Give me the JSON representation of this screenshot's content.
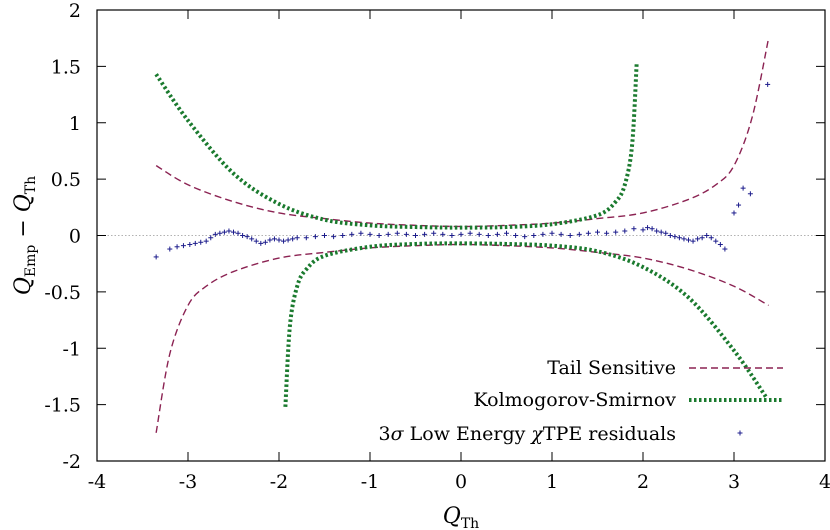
{
  "chart_data": {
    "type": "line",
    "xlim": [
      -4,
      4
    ],
    "ylim": [
      -2,
      2
    ],
    "xticks": [
      -4,
      -3,
      -2,
      -1,
      0,
      1,
      2,
      3,
      4
    ],
    "yticks": [
      -2,
      -1.5,
      -1,
      -0.5,
      0,
      0.5,
      1,
      1.5,
      2
    ],
    "xtick_labels": [
      "-4",
      "-3",
      "-2",
      "-1",
      "0",
      "1",
      "2",
      "3",
      "4"
    ],
    "ytick_labels": [
      "-2",
      "-1.5",
      "-1",
      "-0.5",
      "0",
      "0.5",
      "1",
      "1.5",
      "2"
    ],
    "xlabel": "Q_Th",
    "xlabel_main": "Q",
    "xlabel_sub": "Th",
    "ylabel": "Q_Emp − Q_Th",
    "ylabel_main1": "Q",
    "ylabel_sub1": "Emp",
    "ylabel_minus": " − ",
    "ylabel_main2": "Q",
    "ylabel_sub2": "Th",
    "grid": false,
    "zero_line": true,
    "legend_position": "bottom-right",
    "series": [
      {
        "name": "Tail Sensitive",
        "style": "dashed",
        "color": "#8b2252",
        "upper": {
          "x": [
            -3.35,
            -3.0,
            -2.5,
            -2.0,
            -1.5,
            -1.0,
            -0.5,
            0.0,
            0.5,
            1.0,
            1.5,
            2.0,
            2.5,
            2.8,
            3.0,
            3.2,
            3.38
          ],
          "y": [
            0.62,
            0.45,
            0.3,
            0.2,
            0.15,
            0.11,
            0.09,
            0.08,
            0.09,
            0.11,
            0.15,
            0.2,
            0.32,
            0.45,
            0.62,
            1.05,
            1.75
          ]
        },
        "lower": {
          "x": [
            -3.35,
            -3.2,
            -3.0,
            -2.8,
            -2.5,
            -2.0,
            -1.5,
            -1.0,
            -0.5,
            0.0,
            0.5,
            1.0,
            1.5,
            2.0,
            2.5,
            3.0,
            3.38
          ],
          "y": [
            -1.75,
            -1.05,
            -0.62,
            -0.45,
            -0.32,
            -0.2,
            -0.15,
            -0.11,
            -0.09,
            -0.08,
            -0.09,
            -0.11,
            -0.15,
            -0.2,
            -0.3,
            -0.45,
            -0.62
          ]
        }
      },
      {
        "name": "Kolmogorov-Smirnov",
        "style": "dotted",
        "color": "#1a7a2e",
        "upper": {
          "x": [
            -3.35,
            -3.0,
            -2.5,
            -2.0,
            -1.5,
            -1.0,
            -0.5,
            0.0,
            0.5,
            1.0,
            1.5,
            1.7,
            1.8,
            1.88,
            1.93
          ],
          "y": [
            1.43,
            1.02,
            0.55,
            0.28,
            0.14,
            0.09,
            0.075,
            0.07,
            0.075,
            0.1,
            0.18,
            0.3,
            0.45,
            0.8,
            1.52
          ]
        },
        "lower": {
          "x": [
            -1.93,
            -1.88,
            -1.8,
            -1.7,
            -1.5,
            -1.0,
            -0.5,
            0.0,
            0.5,
            1.0,
            1.5,
            2.0,
            2.5,
            3.0,
            3.35
          ],
          "y": [
            -1.52,
            -0.8,
            -0.45,
            -0.3,
            -0.18,
            -0.1,
            -0.075,
            -0.07,
            -0.075,
            -0.09,
            -0.14,
            -0.28,
            -0.55,
            -1.02,
            -1.43
          ]
        }
      },
      {
        "name": "3σ Low Energy χTPE residuals",
        "name_prefix": "3",
        "name_sigma": "σ",
        "name_middle": " Low Energy ",
        "name_chi": "χ",
        "name_suffix": "TPE residuals",
        "style": "points",
        "color": "#1c1c8c",
        "x": [
          -3.35,
          -3.2,
          -3.12,
          -3.05,
          -2.98,
          -2.92,
          -2.86,
          -2.8,
          -2.75,
          -2.7,
          -2.65,
          -2.6,
          -2.55,
          -2.5,
          -2.45,
          -2.4,
          -2.35,
          -2.3,
          -2.25,
          -2.2,
          -2.15,
          -2.1,
          -2.05,
          -2.0,
          -1.95,
          -1.9,
          -1.85,
          -1.8,
          -1.7,
          -1.6,
          -1.5,
          -1.4,
          -1.3,
          -1.2,
          -1.1,
          -1.0,
          -0.9,
          -0.8,
          -0.7,
          -0.6,
          -0.5,
          -0.4,
          -0.3,
          -0.2,
          -0.1,
          0.0,
          0.1,
          0.2,
          0.3,
          0.4,
          0.5,
          0.6,
          0.7,
          0.8,
          0.9,
          1.0,
          1.1,
          1.2,
          1.3,
          1.4,
          1.5,
          1.6,
          1.7,
          1.8,
          1.9,
          2.0,
          2.05,
          2.1,
          2.15,
          2.2,
          2.25,
          2.3,
          2.35,
          2.4,
          2.45,
          2.5,
          2.55,
          2.6,
          2.65,
          2.7,
          2.75,
          2.8,
          2.85,
          2.9,
          3.0,
          3.05,
          3.1,
          3.18,
          3.37
        ],
        "y": [
          -0.19,
          -0.12,
          -0.1,
          -0.09,
          -0.08,
          -0.07,
          -0.06,
          -0.05,
          -0.02,
          0.01,
          0.02,
          0.03,
          0.04,
          0.03,
          0.02,
          0.0,
          -0.01,
          -0.03,
          -0.05,
          -0.07,
          -0.06,
          -0.04,
          -0.03,
          -0.04,
          -0.05,
          -0.04,
          -0.03,
          -0.02,
          -0.02,
          -0.01,
          0.0,
          -0.01,
          0.0,
          0.01,
          0.02,
          0.01,
          0.0,
          0.01,
          0.02,
          0.01,
          0.0,
          0.01,
          0.02,
          0.01,
          0.0,
          0.01,
          0.02,
          0.01,
          0.0,
          0.01,
          0.02,
          0.0,
          -0.01,
          0.0,
          0.01,
          0.02,
          0.01,
          0.0,
          0.01,
          0.02,
          0.03,
          0.02,
          0.03,
          0.04,
          0.06,
          0.05,
          0.07,
          0.06,
          0.04,
          0.03,
          0.02,
          0.0,
          -0.01,
          -0.02,
          -0.03,
          -0.04,
          -0.05,
          -0.03,
          -0.02,
          0.0,
          -0.02,
          -0.05,
          -0.08,
          -0.12,
          0.2,
          0.27,
          0.42,
          0.37,
          1.34
        ]
      }
    ]
  }
}
